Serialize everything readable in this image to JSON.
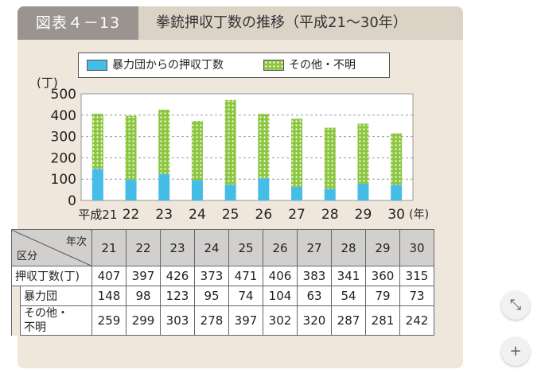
{
  "figure": {
    "label": "図表４－13",
    "title": "拳銃押収丁数の推移（平成21～30年）"
  },
  "colors": {
    "gang": "#46bde7",
    "other": "#8cc63f",
    "other_dots": "#ffffff",
    "panel": "#efe7dc"
  },
  "chart_data": {
    "type": "bar",
    "stacked": true,
    "categories": [
      "平成21",
      "22",
      "23",
      "24",
      "25",
      "26",
      "27",
      "28",
      "29",
      "30"
    ],
    "x_unit": "(年)",
    "y_unit": "(丁)",
    "ylim": [
      0,
      500
    ],
    "yticks": [
      0,
      100,
      200,
      300,
      400,
      500
    ],
    "grid": true,
    "legend": "top",
    "series": [
      {
        "name": "暴力団からの押収丁数",
        "color": "#46bde7",
        "values": [
          148,
          98,
          123,
          95,
          74,
          104,
          63,
          54,
          79,
          73
        ]
      },
      {
        "name": "その他・不明",
        "color": "#8cc63f",
        "pattern": "dots",
        "values": [
          259,
          299,
          303,
          278,
          397,
          302,
          320,
          287,
          281,
          242
        ]
      }
    ]
  },
  "table": {
    "corner_top": "年次",
    "corner_bottom": "区分",
    "years": [
      "21",
      "22",
      "23",
      "24",
      "25",
      "26",
      "27",
      "28",
      "29",
      "30"
    ],
    "rows": [
      {
        "label": "押収丁数(丁)",
        "values": [
          "407",
          "397",
          "426",
          "373",
          "471",
          "406",
          "383",
          "341",
          "360",
          "315"
        ]
      },
      {
        "label": "暴力団",
        "values": [
          "148",
          "98",
          "123",
          "95",
          "74",
          "104",
          "63",
          "54",
          "79",
          "73"
        ]
      },
      {
        "label_lines": [
          "その他・",
          "不明"
        ],
        "values": [
          "259",
          "299",
          "303",
          "278",
          "397",
          "302",
          "320",
          "287",
          "281",
          "242"
        ]
      }
    ]
  },
  "controls": {
    "collapse_icon": "collapse-icon",
    "zoom_in_icon": "plus-icon",
    "collapse_glyph": "⤡",
    "zoom_in_glyph": "+"
  }
}
